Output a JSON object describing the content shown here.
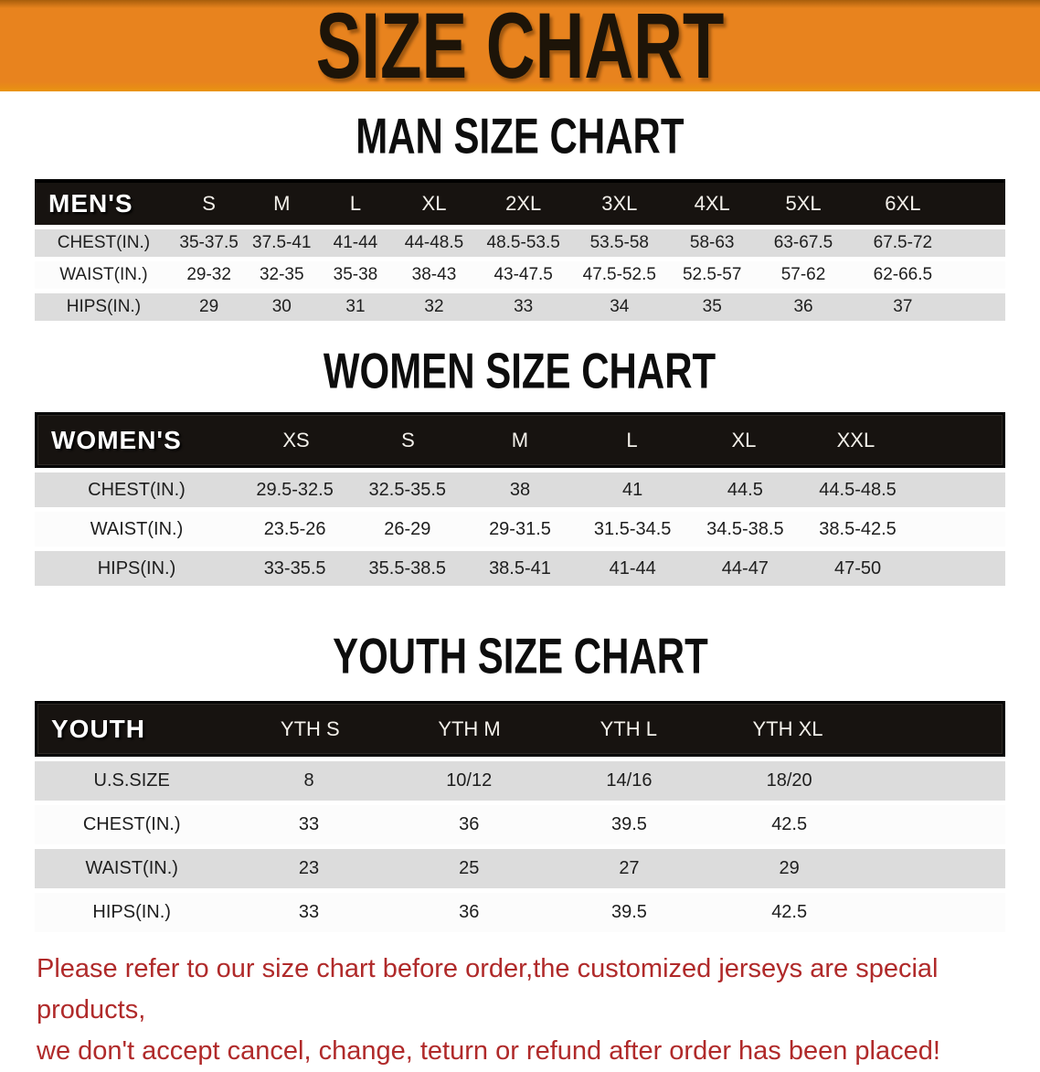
{
  "banner": {
    "title": "SIZE CHART"
  },
  "colors": {
    "banner_bg": "#e8831e",
    "banner_text": "#1d1408",
    "table_header_bg": "#171310",
    "row_gray": "#dcdcdc",
    "row_white": "#fcfcfc",
    "disclaimer_red": "#b02a2a"
  },
  "sections": [
    {
      "heading": "MAN SIZE CHART",
      "table": {
        "label": "MEN'S",
        "sizes": [
          "S",
          "M",
          "L",
          "XL",
          "2XL",
          "3XL",
          "4XL",
          "5XL",
          "6XL"
        ],
        "rows": [
          {
            "label": "CHEST(IN.)",
            "values": [
              "35-37.5",
              "37.5-41",
              "41-44",
              "44-48.5",
              "48.5-53.5",
              "53.5-58",
              "58-63",
              "63-67.5",
              "67.5-72"
            ]
          },
          {
            "label": "WAIST(IN.)",
            "values": [
              "29-32",
              "32-35",
              "35-38",
              "38-43",
              "43-47.5",
              "47.5-52.5",
              "52.5-57",
              "57-62",
              "62-66.5"
            ]
          },
          {
            "label": "HIPS(IN.)",
            "values": [
              "29",
              "30",
              "31",
              "32",
              "33",
              "34",
              "35",
              "36",
              "37"
            ]
          }
        ]
      }
    },
    {
      "heading": "WOMEN SIZE CHART",
      "table": {
        "label": "WOMEN'S",
        "sizes": [
          "XS",
          "S",
          "M",
          "L",
          "XL",
          "XXL"
        ],
        "rows": [
          {
            "label": "CHEST(IN.)",
            "values": [
              "29.5-32.5",
              "32.5-35.5",
              "38",
              "41",
              "44.5",
              "44.5-48.5"
            ]
          },
          {
            "label": "WAIST(IN.)",
            "values": [
              "23.5-26",
              "26-29",
              "29-31.5",
              "31.5-34.5",
              "34.5-38.5",
              "38.5-42.5"
            ]
          },
          {
            "label": "HIPS(IN.)",
            "values": [
              "33-35.5",
              "35.5-38.5",
              "38.5-41",
              "41-44",
              "44-47",
              "47-50"
            ]
          }
        ]
      }
    },
    {
      "heading": "YOUTH SIZE CHART",
      "table": {
        "label": "YOUTH",
        "sizes": [
          "YTH S",
          "YTH M",
          "YTH L",
          "YTH XL"
        ],
        "rows": [
          {
            "label": "U.S.SIZE",
            "values": [
              "8",
              "10/12",
              "14/16",
              "18/20"
            ]
          },
          {
            "label": "CHEST(IN.)",
            "values": [
              "33",
              "36",
              "39.5",
              "42.5"
            ]
          },
          {
            "label": "WAIST(IN.)",
            "values": [
              "23",
              "25",
              "27",
              "29"
            ]
          },
          {
            "label": "HIPS(IN.)",
            "values": [
              "33",
              "36",
              "39.5",
              "42.5"
            ]
          }
        ]
      }
    }
  ],
  "disclaimer": {
    "lines": [
      "Please refer to our size chart before order,the customized jerseys are special products,",
      "we don't accept cancel, change, teturn or refund after order has been placed!"
    ]
  }
}
